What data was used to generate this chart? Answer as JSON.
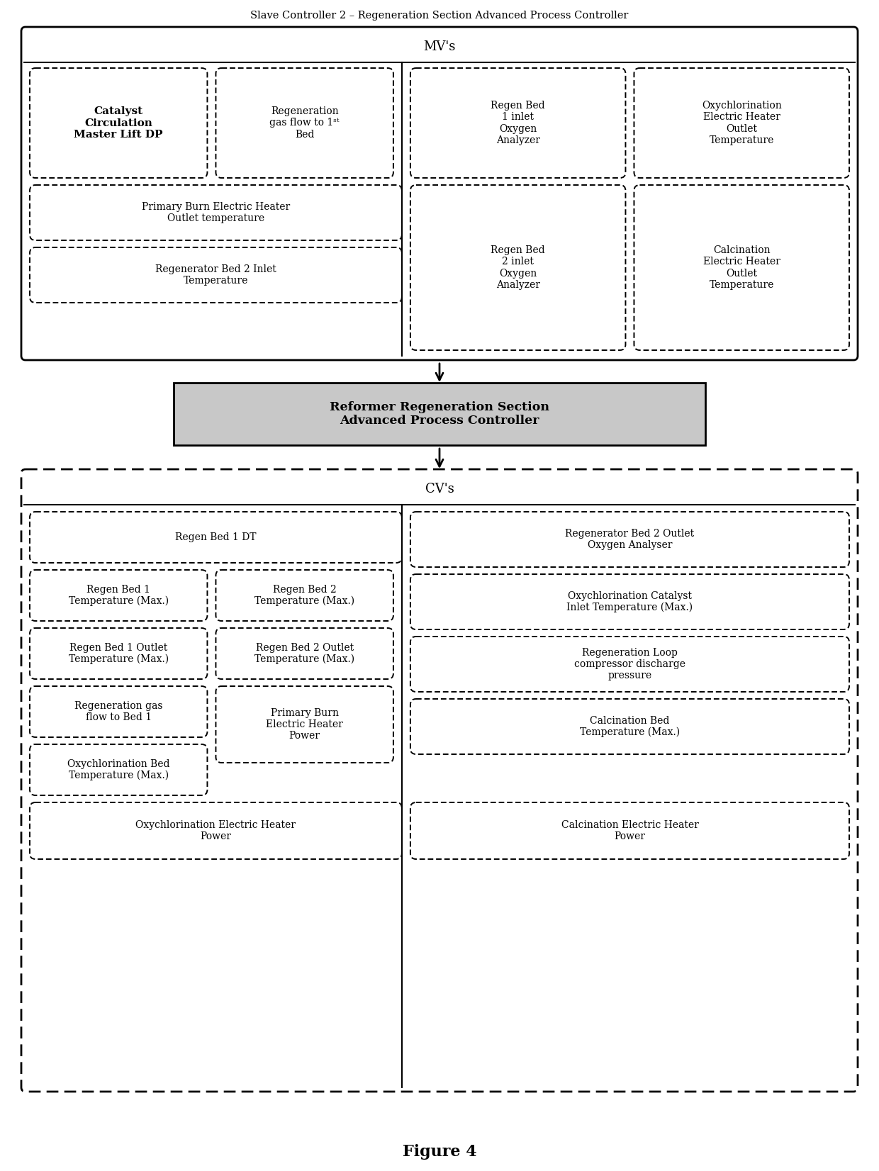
{
  "title": "Slave Controller 2 – Regeneration Section Advanced Process Controller",
  "figure_caption": "Figure 4",
  "bg_color": "#ffffff",
  "text_color": "#000000",
  "box_bg": "#ffffff",
  "box_border": "#000000",
  "shaded_box_bg": "#c8c8c8",
  "mv_section_label": "MV's",
  "cv_section_label": "CV's",
  "controller_label": "Reformer Regeneration Section\nAdvanced Process Controller",
  "mv_boxes_left_top": [
    [
      "Catalyst\nCirculation\nMaster Lift DP",
      true
    ],
    [
      "Regeneration\ngas flow to 1ˢᵗ\nBed",
      false
    ]
  ],
  "mv_box_wide1": "Primary Burn Electric Heater\nOutlet temperature",
  "mv_box_wide2": "Regenerator Bed 2 Inlet\nTemperature",
  "mv_boxes_right": [
    [
      "Regen Bed\n1 inlet\nOxygen\nAnalyzer",
      "Oxychlorination\nElectric Heater\nOutlet\nTemperature"
    ],
    [
      "Regen Bed\n2 inlet\nOxygen\nAnalyzer",
      "Calcination\nElectric Heater\nOutlet\nTemperature"
    ]
  ],
  "cv_col1": [
    "Regen Bed 1 DT",
    "Regen Bed 1\nTemperature (Max.)",
    "Regen Bed 1 Outlet\nTemperature (Max.)",
    "Regeneration gas\nflow to Bed 1",
    "Oxychlorination Bed\nTemperature (Max.)"
  ],
  "cv_col2": [
    "Regen Bed 2\nTemperature (Max.)",
    "Regen Bed 2 Outlet\nTemperature (Max.)",
    "Primary Burn\nElectric Heater\nPower"
  ],
  "cv_col3": [
    "Regenerator Bed 2 Outlet\nOxygen Analyser",
    "Oxychlorination Catalyst\nInlet Temperature (Max.)",
    "Regeneration Loop\ncompressor discharge\npressure",
    "Calcination Bed\nTemperature (Max.)"
  ],
  "cv_bottom": [
    "Oxychlorination Electric Heater\nPower",
    "Calcination Electric Heater\nPower"
  ]
}
